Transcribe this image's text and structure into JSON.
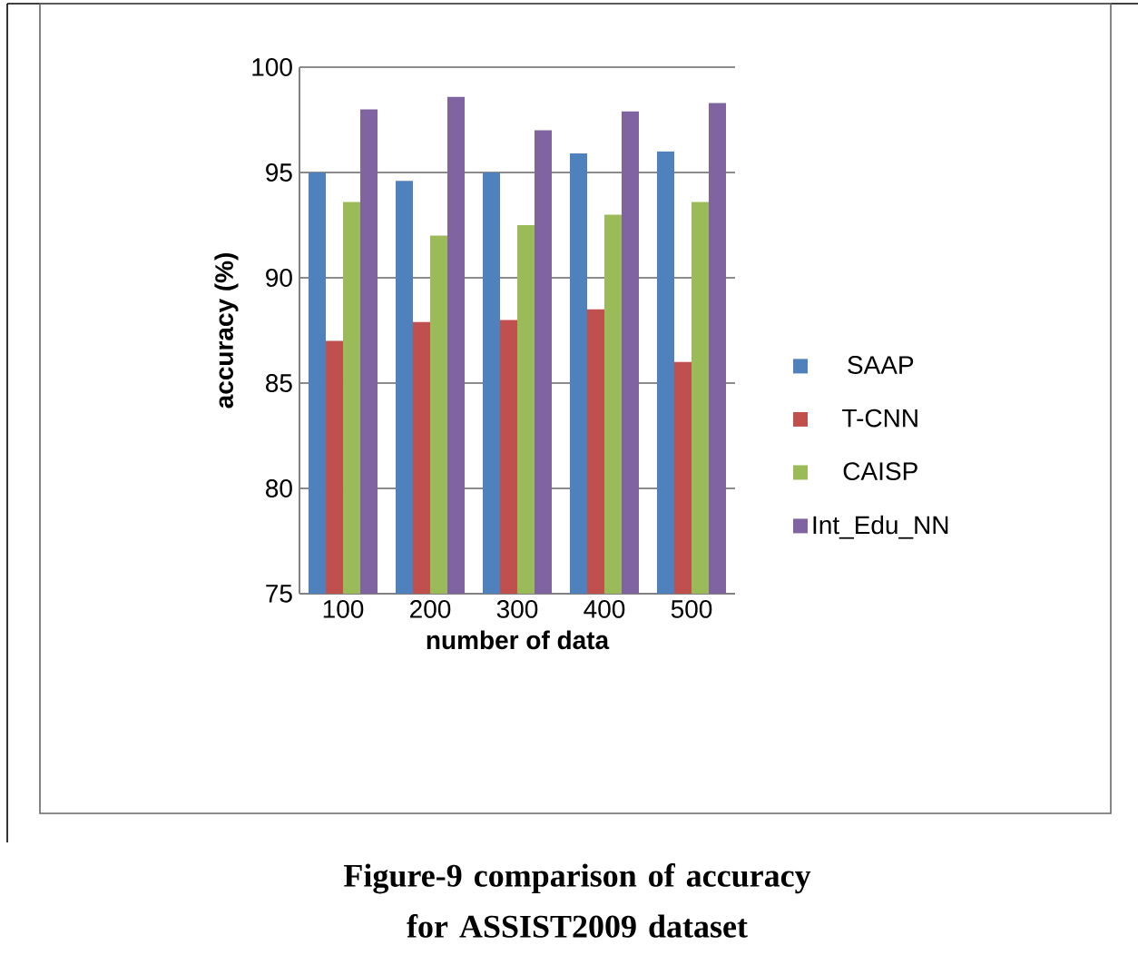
{
  "chart_data": {
    "type": "bar",
    "xlabel": "number of data",
    "ylabel": "accuracy (%)",
    "categories": [
      "100",
      "200",
      "300",
      "400",
      "500"
    ],
    "series": [
      {
        "name": "SAAP",
        "color": "#4f81bd",
        "values": [
          95.0,
          94.6,
          95.0,
          95.9,
          96.0
        ]
      },
      {
        "name": "T-CNN",
        "color": "#c0504d",
        "values": [
          87.0,
          87.9,
          88.0,
          88.5,
          86.0
        ]
      },
      {
        "name": "CAISP",
        "color": "#9bbb59",
        "values": [
          93.6,
          92.0,
          92.5,
          93.0,
          93.6
        ]
      },
      {
        "name": "Int_Edu_NN",
        "color": "#8064a2",
        "values": [
          98.0,
          98.6,
          97.0,
          97.9,
          98.3
        ]
      }
    ],
    "ylim": [
      75,
      100
    ],
    "yticks": [
      75,
      80,
      85,
      90,
      95,
      100
    ],
    "grid": "y",
    "legend": "right",
    "annotations": [
      "Figure-9 comparison of accuracy for ASSIST2009 dataset"
    ]
  }
}
